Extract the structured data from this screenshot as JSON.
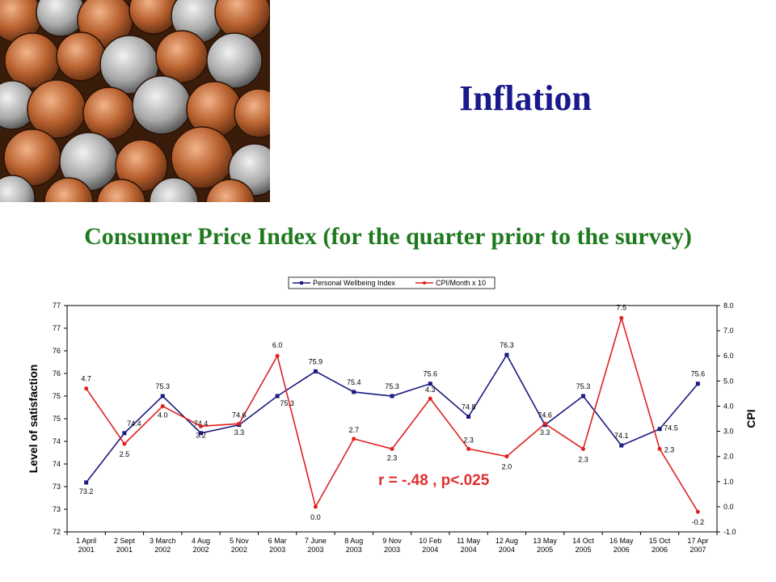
{
  "slide": {
    "title": "Inflation",
    "subtitle": "Consumer Price Index (for the quarter prior to the survey)"
  },
  "colors": {
    "title": "#1a1a8c",
    "subtitle": "#1f7a1f",
    "series_wellbeing": "#1a1a80",
    "series_cpi": "#e02020",
    "annotation": "#e03030"
  },
  "chart_data": {
    "type": "line",
    "categories": [
      "1 April 2001",
      "2 Sept 2001",
      "3 March 2002",
      "4 Aug 2002",
      "5 Nov 2002",
      "6 Mar 2003",
      "7 June 2003",
      "8 Aug 2003",
      "9 Nov 2003",
      "10 Feb 2004",
      "11 May 2004",
      "12 Aug 2004",
      "13 May 2005",
      "14 Oct 2005",
      "16 May 2006",
      "15 Oct 2006",
      "17 Apr 2007"
    ],
    "category_lines": [
      [
        "1 April",
        "2001"
      ],
      [
        "2 Sept",
        "2001"
      ],
      [
        "3 March",
        "2002"
      ],
      [
        "4 Aug",
        "2002"
      ],
      [
        "5 Nov",
        "2002"
      ],
      [
        "6 Mar",
        "2003"
      ],
      [
        "7 June",
        "2003"
      ],
      [
        "8 Aug",
        "2003"
      ],
      [
        "9 Nov",
        "2003"
      ],
      [
        "10 Feb",
        "2004"
      ],
      [
        "11 May",
        "2004"
      ],
      [
        "12 Aug",
        "2004"
      ],
      [
        "13 May",
        "2005"
      ],
      [
        "14 Oct",
        "2005"
      ],
      [
        "16 May",
        "2006"
      ],
      [
        "15 Oct",
        "2006"
      ],
      [
        "17 Apr",
        "2007"
      ]
    ],
    "series": [
      {
        "name": "Personal Wellbeing Index",
        "axis": "left",
        "values": [
          73.2,
          74.4,
          75.3,
          74.4,
          74.6,
          75.3,
          75.9,
          75.4,
          75.3,
          75.6,
          74.8,
          76.3,
          74.6,
          75.3,
          74.1,
          74.5,
          75.6
        ],
        "labels": [
          "73.2",
          "74.4",
          "75.3",
          "74.4",
          "74.6",
          "75.3",
          "75.9",
          "75.4",
          "75.3",
          "75.6",
          "74.8",
          "76.3",
          "74.6",
          "75.3",
          "74.1",
          "74.5",
          "75.6"
        ],
        "color": "#1a1a80"
      },
      {
        "name": "CPI/Month x 10",
        "axis": "right",
        "values": [
          4.7,
          2.5,
          4.0,
          3.2,
          3.3,
          6.0,
          0.0,
          2.7,
          2.3,
          4.3,
          2.3,
          2.0,
          3.3,
          2.3,
          7.5,
          2.3,
          -0.2
        ],
        "labels": [
          "4.7",
          "2.5",
          "4.0",
          "3.2",
          "3.3",
          "6.0",
          "0.0",
          "2.7",
          "2.3",
          "4.3",
          "2.3",
          "2.0",
          "3.3",
          "2.3",
          "7.5",
          "2.3",
          "-0.2"
        ],
        "color": "#e02020"
      }
    ],
    "left_axis": {
      "label": "Level of satisfaction",
      "range": [
        72,
        77.5
      ],
      "tick_labels": [
        "72",
        "73",
        "73",
        "74",
        "74",
        "75",
        "75",
        "76",
        "76",
        "77",
        "77"
      ]
    },
    "right_axis": {
      "label": "CPI",
      "range": [
        -1.0,
        8.0
      ],
      "tick_labels": [
        "-1.0",
        "0.0",
        "1.0",
        "2.0",
        "3.0",
        "4.0",
        "5.0",
        "6.0",
        "7.0",
        "8.0"
      ]
    },
    "legend": {
      "placement": "top-center"
    },
    "annotation": "r = -.48 , p<.025",
    "grid": false
  }
}
